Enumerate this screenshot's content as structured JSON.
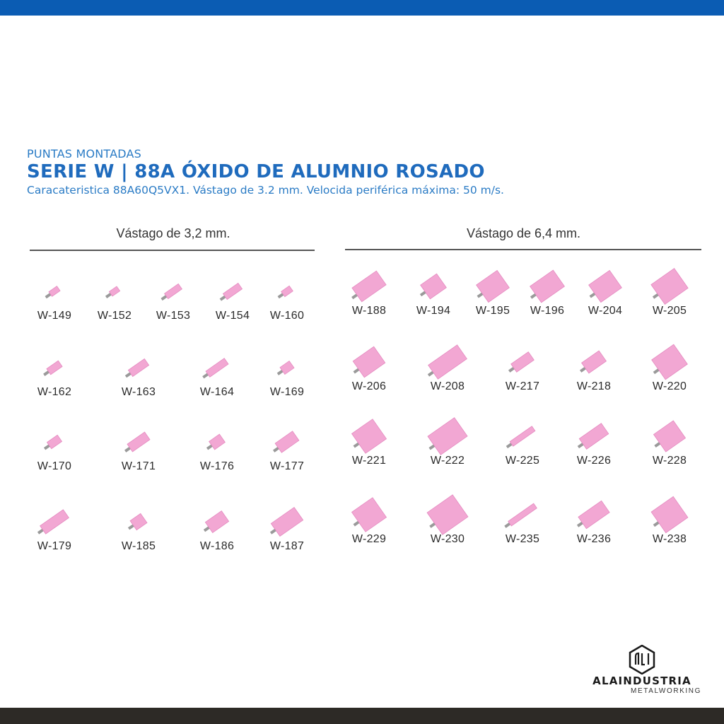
{
  "header": {
    "subtitle": "PUNTAS MONTADAS",
    "title": "SERIE W | 88A ÓXIDO DE ALUMNIO ROSADO",
    "description": "Caracateristica 88A60Q5VX1. Vástago de 3.2 mm. Velocida periférica máxima: 50 m/s."
  },
  "groups": [
    {
      "title": "Vástago de 3,2 mm."
    },
    {
      "title": "Vástago de 6,4 mm."
    }
  ],
  "colors": {
    "pink": "#f2a7d3",
    "pink_edge": "#e48bc0",
    "shank": "#9a9a9a",
    "accent": "#1f6bbd",
    "top_bar": "#0b5cb3",
    "bottom_bar": "#2d2a26"
  },
  "products_small": [
    {
      "code": "W-149"
    },
    {
      "code": "W-152"
    },
    {
      "code": "W-153"
    },
    {
      "code": "W-154"
    },
    {
      "code": "W-160"
    },
    {
      "code": "W-162"
    },
    {
      "code": "W-163"
    },
    {
      "code": "W-164"
    },
    {
      "code": "W-169"
    },
    {
      "code": "W-170"
    },
    {
      "code": "W-171"
    },
    {
      "code": "W-176"
    },
    {
      "code": "W-177"
    },
    {
      "code": "W-179"
    },
    {
      "code": "W-185"
    },
    {
      "code": "W-186"
    },
    {
      "code": "W-187"
    }
  ],
  "products_large": [
    {
      "code": "W-188"
    },
    {
      "code": "W-194"
    },
    {
      "code": "W-195"
    },
    {
      "code": "W-196"
    },
    {
      "code": "W-204"
    },
    {
      "code": "W-205"
    },
    {
      "code": "W-206"
    },
    {
      "code": "W-208"
    },
    {
      "code": "W-217"
    },
    {
      "code": "W-218"
    },
    {
      "code": "W-220"
    },
    {
      "code": "W-221"
    },
    {
      "code": "W-222"
    },
    {
      "code": "W-225"
    },
    {
      "code": "W-226"
    },
    {
      "code": "W-228"
    },
    {
      "code": "W-229"
    },
    {
      "code": "W-230"
    },
    {
      "code": "W-235"
    },
    {
      "code": "W-236"
    },
    {
      "code": "W-238"
    }
  ],
  "logo": {
    "name": "ALAINDUSTRIA",
    "tagline": "METALWORKING",
    "mark": "ALI"
  }
}
